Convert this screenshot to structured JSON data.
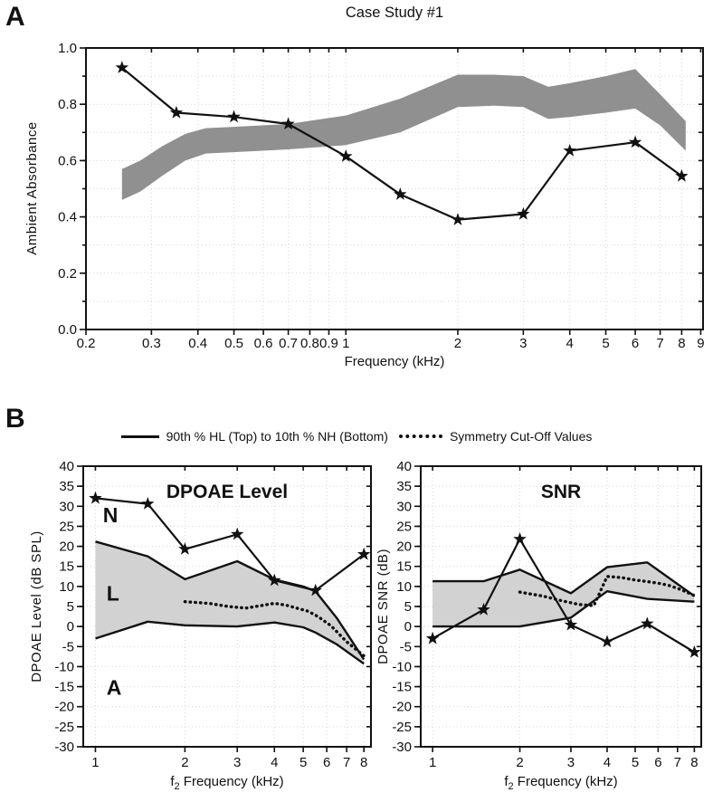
{
  "panels": {
    "a_label": "A",
    "b_label": "B"
  },
  "panel_b": {
    "legend": [
      {
        "style": "solid-line",
        "label": "90th % HL (Top) to 10th % NH (Bottom)"
      },
      {
        "style": "dotted-line",
        "label": "Symmetry Cut-Off Values"
      }
    ]
  },
  "colors": {
    "band_a": "#909090",
    "band_b_fill": "#d2d2d2",
    "ink": "#111111",
    "grid": "#d6d6d6"
  },
  "chart_data": [
    {
      "id": "ambient-absorbance",
      "type": "area+line",
      "title": "Case Study #1",
      "xlabel": "Frequency (kHz)",
      "ylabel": "Ambient Absorbance",
      "x_scale": "log",
      "xlim": [
        0.2,
        9.13
      ],
      "ylim": [
        0,
        1
      ],
      "x_ticks": [
        0.2,
        0.3,
        0.4,
        0.5,
        0.6,
        0.7,
        0.8,
        0.9,
        1,
        2,
        3,
        4,
        5,
        6,
        7,
        8,
        9
      ],
      "x_tick_labels": [
        "0.2",
        "0.3",
        "0.4",
        "0.5",
        "0.6",
        "0.7",
        "0.8",
        "0.9",
        "1",
        "2",
        "3",
        "4",
        "5",
        "6",
        "7",
        "8",
        "9"
      ],
      "y_ticks": [
        0,
        0.2,
        0.4,
        0.6,
        0.8,
        1
      ],
      "y_tick_labels": [
        "0.0",
        "0.2",
        "0.4",
        "0.6",
        "0.8",
        "1.0"
      ],
      "y_minor_step": 0.1,
      "band": {
        "name": "normative-range",
        "fill": "#909090",
        "outline": false,
        "x": [
          0.25,
          0.28,
          0.32,
          0.37,
          0.42,
          0.5,
          0.7,
          1.0,
          1.4,
          2.0,
          2.5,
          3.0,
          3.5,
          4.0,
          5.0,
          6.0,
          7.0,
          8.2
        ],
        "low": [
          0.46,
          0.49,
          0.545,
          0.6,
          0.625,
          0.63,
          0.64,
          0.655,
          0.7,
          0.79,
          0.795,
          0.79,
          0.748,
          0.755,
          0.77,
          0.785,
          0.725,
          0.635
        ],
        "high": [
          0.57,
          0.6,
          0.65,
          0.695,
          0.715,
          0.72,
          0.73,
          0.76,
          0.82,
          0.905,
          0.905,
          0.9,
          0.862,
          0.875,
          0.9,
          0.925,
          0.835,
          0.74
        ]
      },
      "line": {
        "name": "case-study-ear",
        "marker": "star",
        "x": [
          0.25,
          0.35,
          0.5,
          0.7,
          1,
          1.4,
          2,
          3,
          4,
          6,
          8
        ],
        "y": [
          0.93,
          0.77,
          0.755,
          0.73,
          0.615,
          0.48,
          0.39,
          0.41,
          0.635,
          0.665,
          0.545
        ]
      }
    },
    {
      "id": "dpoae-level",
      "type": "area+line",
      "inner_title": "DPOAE Level",
      "xlabel_pre": "f",
      "xlabel_sub": "2",
      "xlabel_rest": " Frequency (kHz)",
      "ylabel": "DPOAE Level (dB SPL)",
      "x_scale": "log",
      "xlim": [
        0.91,
        8.45
      ],
      "ylim": [
        -30,
        40
      ],
      "x_ticks": [
        1,
        2,
        3,
        4,
        5,
        6,
        7,
        8
      ],
      "x_tick_labels": [
        "1",
        "2",
        "3",
        "4",
        "5",
        "6",
        "7",
        "8"
      ],
      "y_ticks": [
        40,
        35,
        30,
        25,
        20,
        15,
        10,
        5,
        0,
        -5,
        -10,
        -15,
        -20,
        -25,
        -30
      ],
      "y_tick_labels": [
        "40",
        "35",
        "30",
        "25",
        "20",
        "15",
        "10",
        "5",
        "0",
        "-5",
        "-10",
        "-15",
        "-20",
        "-25",
        "-30"
      ],
      "region_labels": [
        {
          "text": "N",
          "x": 1.06,
          "y": 26
        },
        {
          "text": "L",
          "x": 1.09,
          "y": 6.5
        },
        {
          "text": "A",
          "x": 1.09,
          "y": -17
        }
      ],
      "band": {
        "name": "90pct-HL-to-10pct-NH",
        "fill": "#d2d2d2",
        "outline": true,
        "x": [
          1,
          1.5,
          2,
          3,
          4,
          5,
          5.5,
          6.5,
          8
        ],
        "high": [
          21.2,
          17.5,
          11.8,
          16.3,
          11.7,
          10,
          8.8,
          2,
          -8.2
        ],
        "low": [
          -3,
          1.2,
          0.3,
          0,
          1,
          -0.2,
          -1.5,
          -4.5,
          -9.3
        ]
      },
      "dotted": {
        "name": "symmetry-cutoff",
        "x": [
          2,
          2.4,
          2.8,
          3.2,
          3.6,
          4,
          4.4,
          4.8,
          5.2,
          5.6,
          6.2,
          7,
          8
        ],
        "y": [
          6.2,
          5.8,
          5.0,
          4.6,
          5.2,
          5.8,
          5.3,
          4.5,
          3.8,
          2.5,
          0.2,
          -3.8,
          -7.3
        ]
      },
      "line": {
        "name": "case-study-ear",
        "marker": "star",
        "x": [
          1,
          1.5,
          2,
          3,
          4,
          5.5,
          8
        ],
        "y": [
          32,
          30.6,
          19.3,
          23,
          11.5,
          9,
          18
        ]
      }
    },
    {
      "id": "snr",
      "type": "area+line",
      "inner_title": "SNR",
      "xlabel_pre": "f",
      "xlabel_sub": "2",
      "xlabel_rest": " Frequency (kHz)",
      "ylabel": "DPOAE SNR (dB)",
      "x_scale": "log",
      "xlim": [
        0.91,
        8.45
      ],
      "ylim": [
        -30,
        40
      ],
      "x_ticks": [
        1,
        2,
        3,
        4,
        5,
        6,
        7,
        8
      ],
      "x_tick_labels": [
        "1",
        "2",
        "3",
        "4",
        "5",
        "6",
        "7",
        "8"
      ],
      "y_ticks": [
        40,
        35,
        30,
        25,
        20,
        15,
        10,
        5,
        0,
        -5,
        -10,
        -15,
        -20,
        -25,
        -30
      ],
      "y_tick_labels": [
        "40",
        "35",
        "30",
        "25",
        "20",
        "15",
        "10",
        "5",
        "0",
        "-5",
        "-10",
        "-15",
        "-20",
        "-25",
        "-30"
      ],
      "band": {
        "name": "90pct-HL-to-10pct-NH",
        "fill": "#d2d2d2",
        "outline": true,
        "x": [
          1,
          1.5,
          2,
          3,
          4,
          5.5,
          8
        ],
        "high": [
          11.3,
          11.3,
          14.2,
          8.3,
          14.8,
          16,
          7.6
        ],
        "low": [
          0,
          0,
          0,
          2.2,
          8.8,
          6.9,
          6.2
        ]
      },
      "dotted": {
        "name": "symmetry-cutoff",
        "x": [
          2,
          2.4,
          2.8,
          3.2,
          3.6,
          4,
          4.5,
          5,
          5.5,
          6,
          6.5,
          7.2,
          8
        ],
        "y": [
          8.6,
          7.6,
          6.4,
          5.5,
          5.2,
          12.5,
          12.2,
          11.6,
          11.2,
          10.8,
          10.3,
          9.2,
          7.7
        ]
      },
      "line": {
        "name": "case-study-ear",
        "marker": "star",
        "x": [
          1,
          1.5,
          2,
          3,
          4,
          5.5,
          8
        ],
        "y": [
          -3,
          4.2,
          21.8,
          0.4,
          -3.8,
          0.7,
          -6.4
        ]
      }
    }
  ]
}
